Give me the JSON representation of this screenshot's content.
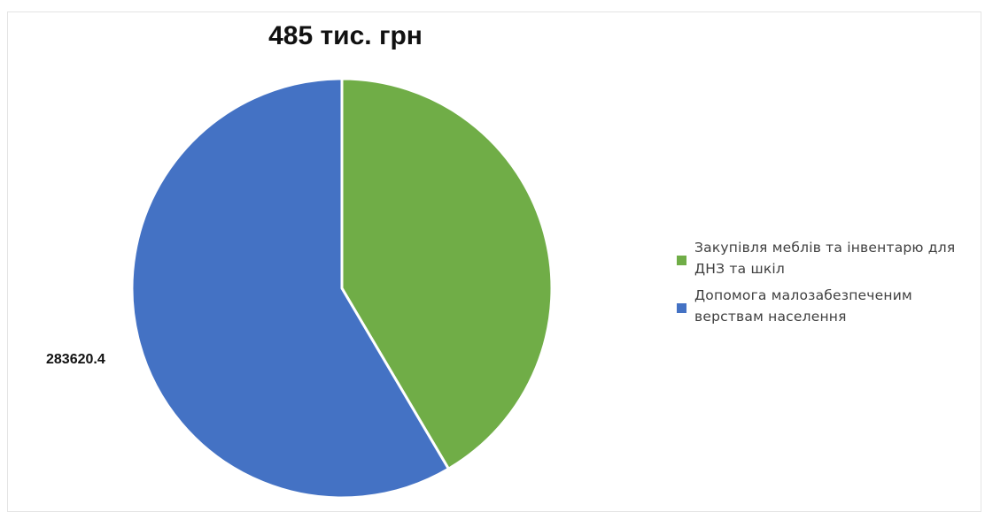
{
  "chart_data": {
    "type": "pie",
    "title": "485 тис. грн",
    "slices": [
      {
        "label": "Закупівля меблів та інвентарю для ДНЗ та шкіл",
        "value": 201379.6,
        "color": "#70ad47"
      },
      {
        "label": "Допомога малозабезпеченим верствам населення",
        "value": 283620.4,
        "color": "#4472c4"
      }
    ],
    "data_labels": [
      "283620.4"
    ],
    "legend_position": "right"
  }
}
